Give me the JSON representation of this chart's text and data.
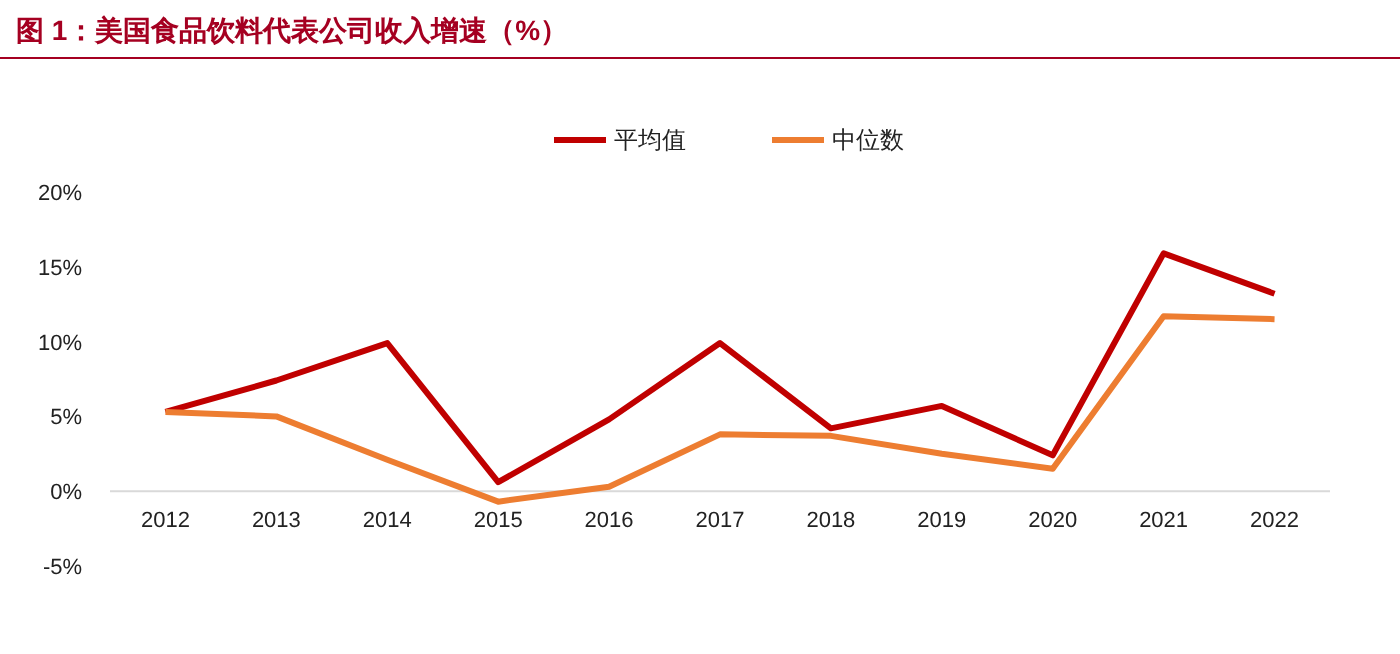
{
  "chart_data": {
    "type": "line",
    "title": "图 1：美国食品饮料代表公司收入增速（%）",
    "categories": [
      "2012",
      "2013",
      "2014",
      "2015",
      "2016",
      "2017",
      "2018",
      "2019",
      "2020",
      "2021",
      "2022"
    ],
    "series": [
      {
        "name": "平均值",
        "color": "#c00000",
        "values": [
          5.3,
          7.4,
          9.9,
          0.6,
          4.8,
          9.9,
          4.2,
          5.7,
          2.4,
          15.9,
          13.2
        ]
      },
      {
        "name": "中位数",
        "color": "#ed7d31",
        "values": [
          5.3,
          5.0,
          2.1,
          -0.7,
          0.3,
          3.8,
          3.7,
          2.5,
          1.5,
          11.7,
          11.5
        ]
      }
    ],
    "ylim": [
      -5,
      20
    ],
    "yticks": [
      {
        "value": -5,
        "label": "-5%"
      },
      {
        "value": 0,
        "label": "0%"
      },
      {
        "value": 5,
        "label": "5%"
      },
      {
        "value": 10,
        "label": "10%"
      },
      {
        "value": 15,
        "label": "15%"
      },
      {
        "value": 20,
        "label": "20%"
      }
    ],
    "grid": false,
    "legend": "top",
    "marker": "none",
    "line_style": "solid"
  }
}
